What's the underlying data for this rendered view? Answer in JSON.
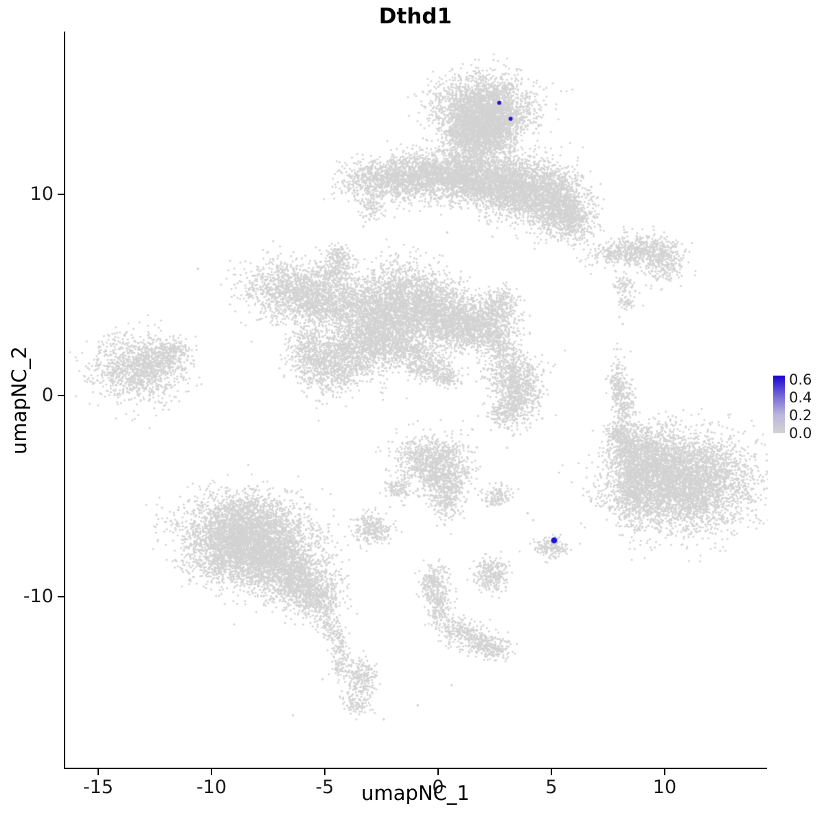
{
  "title": "Dthd1",
  "chart_data": {
    "type": "scatter",
    "title": "Dthd1",
    "xlabel": "umapNC_1",
    "ylabel": "umapNC_2",
    "xlim": [
      -16.455,
      14.455
    ],
    "ylim": [
      -18.5,
      18.02
    ],
    "x_ticks": [
      -15,
      -10,
      -5,
      0,
      5,
      10
    ],
    "y_ticks": [
      10,
      0,
      -10
    ],
    "grid": false,
    "legend_position": "right",
    "point_color_low": "#d3d3d3",
    "point_color_high": "#2016d2",
    "legend": {
      "labels": [
        "0.6",
        "0.4",
        "0.2",
        "0.0"
      ],
      "values": [
        0.6,
        0.4,
        0.2,
        0.0
      ],
      "max": 0.65,
      "gradient": [
        "#1803d1",
        "#7468d9",
        "#bbb6dd",
        "#d3d3d3"
      ]
    },
    "background_clusters": [
      [
        2.0,
        14.2,
        1.05,
        0.85,
        2600
      ],
      [
        1.45,
        13.0,
        0.55,
        0.6,
        700
      ],
      [
        2.6,
        13.2,
        0.5,
        0.6,
        500
      ],
      [
        1.9,
        11.9,
        0.6,
        0.7,
        420
      ],
      [
        -2.6,
        10.7,
        0.85,
        0.5,
        650
      ],
      [
        -1.2,
        10.9,
        0.8,
        0.55,
        750
      ],
      [
        0.3,
        11.0,
        0.8,
        0.6,
        850
      ],
      [
        1.6,
        10.7,
        0.75,
        0.6,
        750
      ],
      [
        2.9,
        10.4,
        0.85,
        0.7,
        950
      ],
      [
        4.3,
        10.2,
        0.95,
        0.8,
        1300
      ],
      [
        5.3,
        9.5,
        0.7,
        0.7,
        800
      ],
      [
        5.9,
        8.7,
        0.5,
        0.5,
        380
      ],
      [
        -2.9,
        9.3,
        0.3,
        0.3,
        90
      ],
      [
        7.8,
        7.0,
        0.65,
        0.3,
        200
      ],
      [
        9.1,
        7.3,
        0.7,
        0.4,
        350
      ],
      [
        9.9,
        6.7,
        0.55,
        0.5,
        300
      ],
      [
        8.2,
        5.6,
        0.25,
        0.3,
        70
      ],
      [
        8.3,
        4.6,
        0.2,
        0.25,
        40
      ],
      [
        -6.6,
        5.3,
        1.0,
        0.7,
        900
      ],
      [
        -5.2,
        4.6,
        0.85,
        0.65,
        750
      ],
      [
        -4.5,
        6.0,
        0.45,
        0.45,
        220
      ],
      [
        -4.4,
        6.9,
        0.3,
        0.3,
        120
      ],
      [
        -3.0,
        4.3,
        0.9,
        0.8,
        950
      ],
      [
        -1.5,
        4.8,
        0.95,
        0.9,
        1200
      ],
      [
        -0.2,
        4.2,
        0.85,
        0.8,
        950
      ],
      [
        0.9,
        3.6,
        0.9,
        0.7,
        900
      ],
      [
        2.1,
        3.3,
        0.7,
        0.6,
        600
      ],
      [
        2.7,
        4.5,
        0.4,
        0.5,
        220
      ],
      [
        -2.2,
        3.0,
        0.85,
        0.7,
        750
      ],
      [
        -3.7,
        2.2,
        0.9,
        0.75,
        900
      ],
      [
        -4.9,
        1.3,
        0.7,
        0.6,
        500
      ],
      [
        -5.6,
        2.4,
        0.5,
        0.5,
        300
      ],
      [
        -1.2,
        2.1,
        0.5,
        0.35,
        250
      ],
      [
        -0.4,
        1.4,
        0.5,
        0.3,
        200
      ],
      [
        0.3,
        0.9,
        0.4,
        0.25,
        130
      ],
      [
        -13.3,
        1.3,
        1.0,
        0.8,
        1100
      ],
      [
        -12.2,
        1.9,
        0.55,
        0.4,
        250
      ],
      [
        -11.6,
        2.3,
        0.3,
        0.25,
        90
      ],
      [
        3.3,
        1.1,
        0.6,
        0.6,
        450
      ],
      [
        3.6,
        0.0,
        0.5,
        0.6,
        380
      ],
      [
        3.0,
        -0.8,
        0.45,
        0.45,
        220
      ],
      [
        2.8,
        2.3,
        0.35,
        0.4,
        100
      ],
      [
        7.95,
        0.6,
        0.22,
        0.7,
        180
      ],
      [
        8.3,
        -0.6,
        0.22,
        0.55,
        130
      ],
      [
        7.95,
        -1.9,
        0.3,
        0.35,
        110
      ],
      [
        10.8,
        -4.3,
        1.5,
        1.15,
        4200
      ],
      [
        9.3,
        -3.1,
        0.7,
        0.8,
        850
      ],
      [
        8.7,
        -4.6,
        0.55,
        0.85,
        550
      ],
      [
        8.3,
        -2.5,
        0.4,
        0.55,
        260
      ],
      [
        -0.3,
        -3.2,
        0.8,
        0.6,
        800
      ],
      [
        0.3,
        -4.3,
        0.55,
        0.55,
        380
      ],
      [
        0.4,
        -5.3,
        0.3,
        0.45,
        160
      ],
      [
        -1.8,
        -4.6,
        0.3,
        0.3,
        110
      ],
      [
        2.6,
        -5.0,
        0.3,
        0.25,
        130
      ],
      [
        -8.6,
        -6.4,
        1.3,
        0.8,
        1900
      ],
      [
        -9.0,
        -7.8,
        1.05,
        0.8,
        1600
      ],
      [
        -7.2,
        -7.9,
        1.0,
        0.9,
        1600
      ],
      [
        -6.1,
        -9.2,
        0.8,
        0.7,
        850
      ],
      [
        -5.3,
        -10.2,
        0.5,
        0.45,
        300
      ],
      [
        -4.9,
        -11.3,
        0.25,
        0.4,
        80
      ],
      [
        -4.4,
        -12.3,
        0.18,
        0.5,
        90
      ],
      [
        -4.3,
        -13.4,
        0.22,
        0.4,
        70
      ],
      [
        -2.9,
        -6.6,
        0.42,
        0.38,
        260
      ],
      [
        5.0,
        -7.5,
        0.38,
        0.3,
        160
      ],
      [
        2.4,
        -8.9,
        0.38,
        0.42,
        260
      ],
      [
        -0.2,
        -9.4,
        0.35,
        0.55,
        230
      ],
      [
        0.1,
        -10.6,
        0.28,
        0.5,
        160
      ],
      [
        0.9,
        -11.7,
        0.5,
        0.3,
        200
      ],
      [
        1.9,
        -12.3,
        0.5,
        0.3,
        200
      ],
      [
        2.5,
        -12.7,
        0.3,
        0.25,
        100
      ],
      [
        -3.4,
        -14.1,
        0.32,
        0.5,
        220
      ],
      [
        -3.6,
        -15.3,
        0.28,
        0.3,
        90
      ]
    ],
    "sparse_points": [
      [
        -10.6,
        6.3
      ],
      [
        -3.3,
        8.4
      ],
      [
        0.4,
        8.1
      ],
      [
        2.4,
        7.9
      ],
      [
        8.0,
        3.9
      ],
      [
        8.15,
        3.55
      ],
      [
        2.6,
        2.95
      ],
      [
        4.45,
        -0.4
      ],
      [
        4.6,
        -1.15
      ],
      [
        3.3,
        -2.0
      ],
      [
        3.05,
        -2.6
      ],
      [
        4.2,
        -6.2
      ],
      [
        3.95,
        -5.85
      ],
      [
        -5.1,
        -14.1
      ],
      [
        -6.4,
        -15.9
      ],
      [
        0.6,
        -14.4
      ],
      [
        -2.4,
        -16.1
      ],
      [
        -0.9,
        -15.4
      ],
      [
        7.9,
        2.3
      ],
      [
        8.7,
        -0.1
      ]
    ],
    "expressing_cells": [
      {
        "x": 2.7,
        "y": 14.55,
        "value": 0.6,
        "r": 3
      },
      {
        "x": 3.2,
        "y": 13.75,
        "value": 0.55,
        "r": 3
      },
      {
        "x": 5.12,
        "y": -7.2,
        "value": 0.65,
        "r": 4.5
      }
    ]
  }
}
